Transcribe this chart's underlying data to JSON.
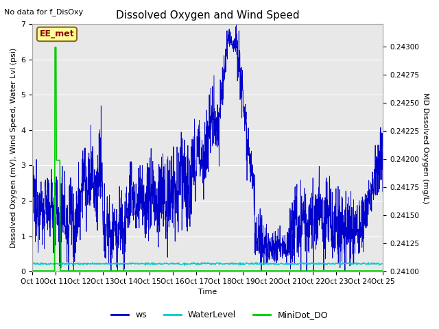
{
  "title": "Dissolved Oxygen and Wind Speed",
  "top_left_text": "No data for f_DisOxy",
  "annotation_box": "EE_met",
  "xlabel": "Time",
  "ylabel_left": "Dissolved Oxygen (mV), Wind Speed, Water Lvl (psi)",
  "ylabel_right": "MD Dissolved Oxygen (mg/L)",
  "ylim_left": [
    0.0,
    7.0
  ],
  "ylim_right": [
    0.241,
    0.2432
  ],
  "x_tick_labels": [
    "Oct 10",
    "Oct 11",
    "Oct 12",
    "Oct 13",
    "Oct 14",
    "Oct 15",
    "Oct 16",
    "Oct 17",
    "Oct 18",
    "Oct 19",
    "Oct 20",
    "Oct 21",
    "Oct 22",
    "Oct 23",
    "Oct 24",
    "Oct 25"
  ],
  "plot_bg_color": "#e8e8e8",
  "ws_color": "#0000cc",
  "water_level_color": "#00cccc",
  "minidot_color": "#00cc00",
  "legend_entries": [
    "ws",
    "WaterLevel",
    "MiniDot_DO"
  ],
  "title_fontsize": 11,
  "tick_label_fontsize": 7.5,
  "ylabel_fontsize": 8,
  "xlabel_fontsize": 8
}
